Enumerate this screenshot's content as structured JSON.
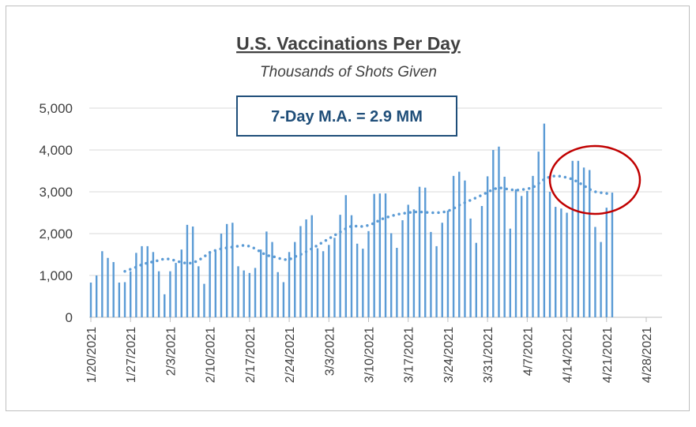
{
  "chart_data": {
    "type": "bar",
    "title": "U.S. Vaccinations Per Day",
    "subtitle": "Thousands of Shots Given",
    "annotation": "7-Day M.A. = 2.9 MM",
    "x": [
      "1/20/2021",
      "1/21/2021",
      "1/22/2021",
      "1/23/2021",
      "1/24/2021",
      "1/25/2021",
      "1/26/2021",
      "1/27/2021",
      "1/28/2021",
      "1/29/2021",
      "1/30/2021",
      "1/31/2021",
      "2/1/2021",
      "2/2/2021",
      "2/3/2021",
      "2/4/2021",
      "2/5/2021",
      "2/6/2021",
      "2/7/2021",
      "2/8/2021",
      "2/9/2021",
      "2/10/2021",
      "2/11/2021",
      "2/12/2021",
      "2/13/2021",
      "2/14/2021",
      "2/15/2021",
      "2/16/2021",
      "2/17/2021",
      "2/18/2021",
      "2/19/2021",
      "2/20/2021",
      "2/21/2021",
      "2/22/2021",
      "2/23/2021",
      "2/24/2021",
      "2/25/2021",
      "2/26/2021",
      "2/27/2021",
      "2/28/2021",
      "3/1/2021",
      "3/2/2021",
      "3/3/2021",
      "3/4/2021",
      "3/5/2021",
      "3/6/2021",
      "3/7/2021",
      "3/8/2021",
      "3/9/2021",
      "3/10/2021",
      "3/11/2021",
      "3/12/2021",
      "3/13/2021",
      "3/14/2021",
      "3/15/2021",
      "3/16/2021",
      "3/17/2021",
      "3/18/2021",
      "3/19/2021",
      "3/20/2021",
      "3/21/2021",
      "3/22/2021",
      "3/23/2021",
      "3/24/2021",
      "3/25/2021",
      "3/26/2021",
      "3/27/2021",
      "3/28/2021",
      "3/29/2021",
      "3/30/2021",
      "3/31/2021",
      "4/1/2021",
      "4/2/2021",
      "4/3/2021",
      "4/4/2021",
      "4/5/2021",
      "4/6/2021",
      "4/7/2021",
      "4/8/2021",
      "4/9/2021",
      "4/10/2021",
      "4/11/2021",
      "4/12/2021",
      "4/13/2021",
      "4/14/2021",
      "4/15/2021",
      "4/16/2021",
      "4/17/2021",
      "4/18/2021",
      "4/19/2021",
      "4/20/2021",
      "4/21/2021",
      "4/22/2021"
    ],
    "series": [
      {
        "kind": "bar",
        "color": "#5b9bd5",
        "values": [
          830,
          1000,
          1580,
          1420,
          1320,
          830,
          840,
          1100,
          1540,
          1700,
          1700,
          1560,
          1100,
          550,
          1100,
          1300,
          1620,
          2210,
          2170,
          1220,
          800,
          1580,
          1600,
          2000,
          2230,
          2260,
          1220,
          1120,
          1060,
          1180,
          1620,
          2050,
          1800,
          1080,
          840,
          1560,
          1800,
          2180,
          2340,
          2440,
          1650,
          1580,
          1730,
          1900,
          2450,
          2920,
          2440,
          1760,
          1640,
          2060,
          2950,
          2960,
          2960,
          2010,
          1660,
          2320,
          2690,
          2580,
          3120,
          3100,
          2040,
          1700,
          2260,
          2550,
          3380,
          3480,
          3270,
          2360,
          1780,
          2660,
          3370,
          4000,
          4080,
          3360,
          2120,
          3060,
          2900,
          3020,
          3380,
          3960,
          4630,
          3000,
          2640,
          2600,
          2500,
          3740,
          3740,
          3580,
          3520,
          2160,
          1800,
          2620,
          2980
        ]
      },
      {
        "kind": "dotted-line",
        "color": "#5b9bd5",
        "values": [
          null,
          null,
          null,
          null,
          null,
          null,
          1100,
          1150,
          1200,
          1260,
          1300,
          1330,
          1360,
          1400,
          1390,
          1350,
          1310,
          1290,
          1300,
          1360,
          1450,
          1550,
          1600,
          1640,
          1660,
          1680,
          1700,
          1720,
          1700,
          1640,
          1560,
          1480,
          1460,
          1420,
          1380,
          1380,
          1450,
          1500,
          1570,
          1640,
          1720,
          1800,
          1880,
          1960,
          2040,
          2120,
          2180,
          2180,
          2170,
          2200,
          2250,
          2330,
          2380,
          2420,
          2460,
          2480,
          2500,
          2520,
          2520,
          2510,
          2500,
          2500,
          2510,
          2540,
          2600,
          2680,
          2740,
          2800,
          2860,
          2920,
          2990,
          3060,
          3100,
          3080,
          3050,
          3040,
          3050,
          3070,
          3100,
          3200,
          3300,
          3360,
          3380,
          3370,
          3340,
          3300,
          3230,
          3150,
          3060,
          3000,
          2980,
          2960,
          2940
        ]
      }
    ],
    "xlim": [
      "1/20/2021",
      "4/28/2021"
    ],
    "xticks": [
      "1/20/2021",
      "1/27/2021",
      "2/3/2021",
      "2/10/2021",
      "2/17/2021",
      "2/24/2021",
      "3/3/2021",
      "3/10/2021",
      "3/17/2021",
      "3/24/2021",
      "3/31/2021",
      "4/7/2021",
      "4/14/2021",
      "4/21/2021",
      "4/28/2021"
    ],
    "ylim": [
      0,
      5000
    ],
    "yticks": [
      0,
      {
        "value": 1000,
        "label": "1,000"
      },
      {
        "value": 2000,
        "label": "2,000"
      },
      {
        "value": 3000,
        "label": "3,000"
      },
      {
        "value": 4000,
        "label": "4,000"
      },
      {
        "value": 5000,
        "label": "5,000"
      }
    ],
    "grid": true
  }
}
